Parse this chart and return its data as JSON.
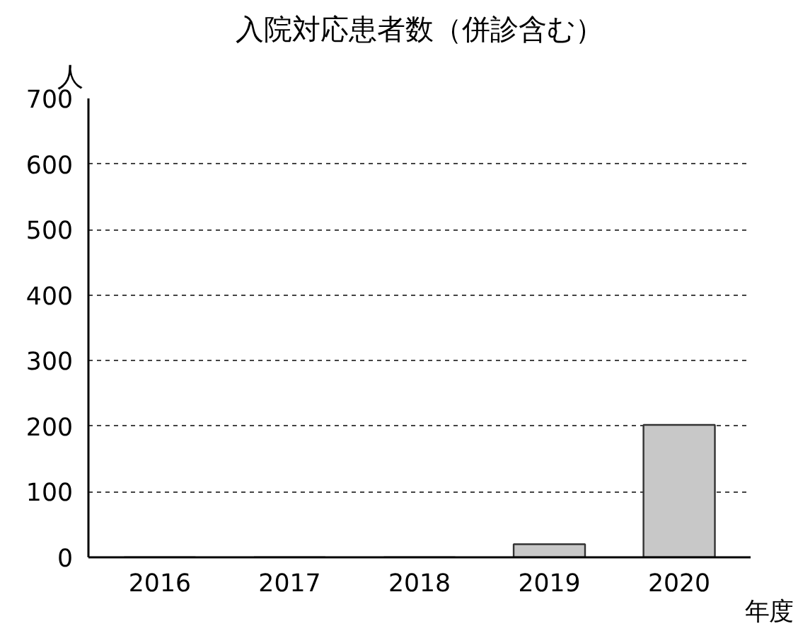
{
  "chart_data": {
    "type": "bar",
    "title": "入院対応患者数（併診含む）",
    "ylabel": "人",
    "xlabel": "年度",
    "categories": [
      "2016",
      "2017",
      "2018",
      "2019",
      "2020"
    ],
    "values": [
      0,
      0,
      0,
      20,
      202
    ],
    "color": "#c8c8c8",
    "ylim": [
      0,
      700
    ],
    "yticks": [
      0,
      100,
      200,
      300,
      400,
      500,
      600,
      700
    ],
    "grid": "y"
  }
}
